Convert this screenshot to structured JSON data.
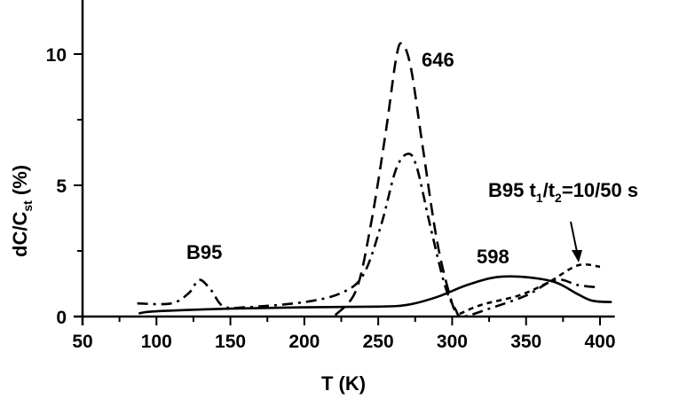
{
  "chart_data": {
    "type": "line",
    "title": "",
    "xlabel": "T (K)",
    "ylabel_main": "dC/C",
    "ylabel_sub": "st",
    "ylabel_tail": " (%)",
    "ylabel": "dC/Cst (%)",
    "xlim": [
      50,
      410
    ],
    "ylim": [
      0,
      12
    ],
    "x_ticks": [
      50,
      100,
      150,
      200,
      250,
      300,
      350,
      400
    ],
    "y_ticks": [
      0,
      5,
      10
    ],
    "grid": false,
    "legend": null,
    "series": [
      {
        "name": "598",
        "style": "solid",
        "points": [
          [
            88,
            0.12
          ],
          [
            100,
            0.2
          ],
          [
            150,
            0.3
          ],
          [
            200,
            0.35
          ],
          [
            250,
            0.38
          ],
          [
            270,
            0.45
          ],
          [
            290,
            0.75
          ],
          [
            310,
            1.2
          ],
          [
            330,
            1.5
          ],
          [
            350,
            1.5
          ],
          [
            370,
            1.3
          ],
          [
            385,
            0.85
          ],
          [
            395,
            0.6
          ],
          [
            408,
            0.55
          ]
        ]
      },
      {
        "name": "646",
        "style": "dashed",
        "points": [
          [
            221,
            0.05
          ],
          [
            235,
            1.0
          ],
          [
            245,
            3.5
          ],
          [
            255,
            7.0
          ],
          [
            262,
            9.8
          ],
          [
            266,
            10.4
          ],
          [
            272,
            9.5
          ],
          [
            280,
            6.5
          ],
          [
            290,
            2.8
          ],
          [
            300,
            0.5
          ],
          [
            305,
            0.0
          ]
        ]
      },
      {
        "name": "B95",
        "style": "dash-dot",
        "points": [
          [
            87,
            0.5
          ],
          [
            110,
            0.5
          ],
          [
            122,
            0.9
          ],
          [
            129,
            1.4
          ],
          [
            137,
            1.0
          ],
          [
            145,
            0.4
          ],
          [
            160,
            0.35
          ],
          [
            200,
            0.55
          ],
          [
            225,
            0.9
          ],
          [
            240,
            1.6
          ],
          [
            252,
            3.5
          ],
          [
            262,
            5.6
          ],
          [
            270,
            6.2
          ],
          [
            276,
            5.7
          ],
          [
            285,
            3.5
          ],
          [
            295,
            1.2
          ],
          [
            302,
            0.3
          ],
          [
            307,
            0.0
          ],
          [
            325,
            0.3
          ],
          [
            350,
            0.8
          ],
          [
            370,
            1.4
          ],
          [
            385,
            1.2
          ],
          [
            400,
            1.1
          ]
        ]
      },
      {
        "name": "B95 t1/t2=10/50 s",
        "style": "short-dash",
        "points": [
          [
            305,
            0.1
          ],
          [
            320,
            0.45
          ],
          [
            345,
            0.8
          ],
          [
            365,
            1.3
          ],
          [
            385,
            1.95
          ],
          [
            400,
            1.9
          ]
        ]
      }
    ],
    "annotations": [
      {
        "text": "646",
        "x": 290,
        "y": 9.6
      },
      {
        "text": "B95",
        "x": 116,
        "y": 2.3
      },
      {
        "text": "598",
        "x": 323,
        "y": 2.0
      },
      {
        "text": "B95 t1/t2=10/50 s",
        "x": 335,
        "y": 4.6,
        "arrow_to": [
          385,
          2.0
        ]
      }
    ]
  },
  "labels": {
    "x_axis_title": "T (K)",
    "y_axis_main": "dC/C",
    "y_axis_sub": "st",
    "y_axis_tail": " (%)",
    "annot_646": "646",
    "annot_b95": "B95",
    "annot_598": "598",
    "annot_t_b95": "B95 t",
    "annot_t_sub1": "1",
    "annot_t_slash": "/t",
    "annot_t_sub2": "2",
    "annot_t_tail": "=10/50 s"
  }
}
